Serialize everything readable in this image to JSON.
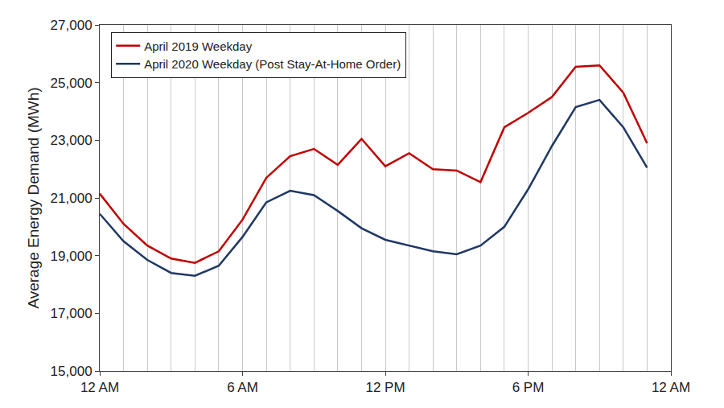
{
  "chart_data": {
    "type": "line",
    "y_label": "Average Energy Demand (MWh)",
    "x": [
      0,
      1,
      2,
      3,
      4,
      5,
      6,
      7,
      8,
      9,
      10,
      11,
      12,
      13,
      14,
      15,
      16,
      17,
      18,
      19,
      20,
      21,
      22,
      23
    ],
    "series": [
      {
        "name": "April 2019 Weekday",
        "color": "#c00000",
        "values": [
          21150,
          20100,
          19350,
          18900,
          18750,
          19150,
          20250,
          21700,
          22450,
          22700,
          22150,
          23050,
          22100,
          22550,
          22000,
          21950,
          21550,
          23450,
          23950,
          24500,
          25550,
          25600,
          24650,
          22900
        ]
      },
      {
        "name": "April 2020 Weekday (Post Stay-At-Home Order)",
        "color": "#1f3864",
        "values": [
          20450,
          19500,
          18850,
          18400,
          18300,
          18650,
          19650,
          20850,
          21250,
          21100,
          20550,
          19950,
          19550,
          19350,
          19150,
          19050,
          19350,
          20000,
          21300,
          22800,
          24150,
          24400,
          23450,
          22050
        ]
      }
    ],
    "xlim": [
      0,
      24
    ],
    "xticks": [
      {
        "value": 0,
        "label": "12 AM"
      },
      {
        "value": 6,
        "label": "6 AM"
      },
      {
        "value": 12,
        "label": "12 PM"
      },
      {
        "value": 18,
        "label": "6 PM"
      },
      {
        "value": 24,
        "label": "12 AM"
      }
    ],
    "ylim": [
      15000,
      27000
    ],
    "yticks": [
      {
        "value": 15000,
        "label": "15,000"
      },
      {
        "value": 17000,
        "label": "17,000"
      },
      {
        "value": 19000,
        "label": "19,000"
      },
      {
        "value": 21000,
        "label": "21,000"
      },
      {
        "value": 23000,
        "label": "23,000"
      },
      {
        "value": 25000,
        "label": "25,000"
      },
      {
        "value": 27000,
        "label": "27,000"
      }
    ],
    "grid": "x",
    "legend": "upper left"
  }
}
